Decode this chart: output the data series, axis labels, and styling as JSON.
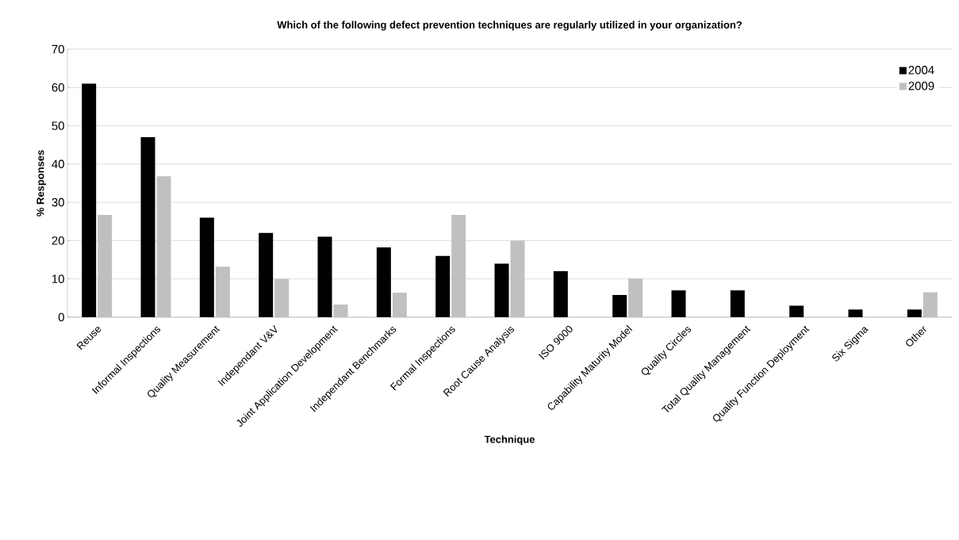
{
  "chart_data": {
    "type": "bar",
    "title": "Which of the following defect prevention techniques are regularly utilized in your organization?",
    "xlabel": "Technique",
    "ylabel": "% Responses",
    "categories": [
      "Reuse",
      "Informal Inspections",
      "Quality Measurement",
      "Independant V&V",
      "Joint Application Development",
      "Independant Benchmarks",
      "Formal Inspections",
      "Root Cause Analysis",
      "ISO 9000",
      "Capability Maturity Model",
      "Quality Circles",
      "Total Quality Management",
      "Quality Function Deployment",
      "Six Sigma",
      "Other"
    ],
    "series": [
      {
        "name": "2004",
        "color": "#000000",
        "values": [
          61,
          47,
          26,
          22,
          21,
          18.2,
          16,
          14,
          12,
          5.8,
          7,
          7,
          3,
          2,
          2
        ]
      },
      {
        "name": "2009",
        "color": "#c0c0c0",
        "values": [
          26.7,
          36.8,
          13.2,
          10,
          3.3,
          6.4,
          26.7,
          20,
          null,
          10.1,
          null,
          null,
          null,
          null,
          6.5
        ]
      }
    ],
    "ylim": [
      0,
      70
    ],
    "yticks": [
      0,
      10,
      20,
      30,
      40,
      50,
      60,
      70
    ],
    "grid": "y",
    "legend": "top right"
  }
}
